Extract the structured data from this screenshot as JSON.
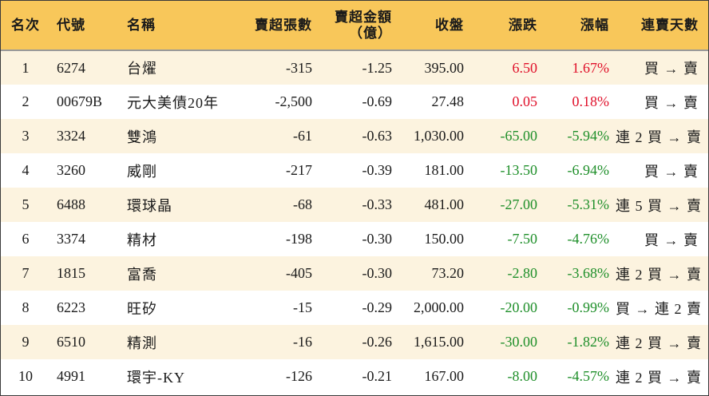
{
  "headers": {
    "rank": "名次",
    "code": "代號",
    "name": "名稱",
    "lots": "賣超張數",
    "amount_line1": "賣超金額",
    "amount_line2": "（億）",
    "close": "收盤",
    "change": "漲跌",
    "pct": "漲幅",
    "days": "連賣天數"
  },
  "colors": {
    "header_bg": "#f8c75a",
    "odd_row_bg": "#fcf3df",
    "up": "#e0102a",
    "down": "#1f8f2a"
  },
  "rows": [
    {
      "rank": "1",
      "code": "6274",
      "name": "台燿",
      "lots": "-315",
      "amount": "-1.25",
      "close": "395.00",
      "change": "6.50",
      "pct": "1.67%",
      "days": "買 → 賣",
      "trend": "up"
    },
    {
      "rank": "2",
      "code": "00679B",
      "name": "元大美債20年",
      "lots": "-2,500",
      "amount": "-0.69",
      "close": "27.48",
      "change": "0.05",
      "pct": "0.18%",
      "days": "買 → 賣",
      "trend": "up"
    },
    {
      "rank": "3",
      "code": "3324",
      "name": "雙鴻",
      "lots": "-61",
      "amount": "-0.63",
      "close": "1,030.00",
      "change": "-65.00",
      "pct": "-5.94%",
      "days": "連 2 買 → 賣",
      "trend": "down"
    },
    {
      "rank": "4",
      "code": "3260",
      "name": "威剛",
      "lots": "-217",
      "amount": "-0.39",
      "close": "181.00",
      "change": "-13.50",
      "pct": "-6.94%",
      "days": "買 → 賣",
      "trend": "down"
    },
    {
      "rank": "5",
      "code": "6488",
      "name": "環球晶",
      "lots": "-68",
      "amount": "-0.33",
      "close": "481.00",
      "change": "-27.00",
      "pct": "-5.31%",
      "days": "連 5 買 → 賣",
      "trend": "down"
    },
    {
      "rank": "6",
      "code": "3374",
      "name": "精材",
      "lots": "-198",
      "amount": "-0.30",
      "close": "150.00",
      "change": "-7.50",
      "pct": "-4.76%",
      "days": "買 → 賣",
      "trend": "down"
    },
    {
      "rank": "7",
      "code": "1815",
      "name": "富喬",
      "lots": "-405",
      "amount": "-0.30",
      "close": "73.20",
      "change": "-2.80",
      "pct": "-3.68%",
      "days": "連 2 買 → 賣",
      "trend": "down"
    },
    {
      "rank": "8",
      "code": "6223",
      "name": "旺矽",
      "lots": "-15",
      "amount": "-0.29",
      "close": "2,000.00",
      "change": "-20.00",
      "pct": "-0.99%",
      "days": "買 → 連 2 賣",
      "trend": "down"
    },
    {
      "rank": "9",
      "code": "6510",
      "name": "精測",
      "lots": "-16",
      "amount": "-0.26",
      "close": "1,615.00",
      "change": "-30.00",
      "pct": "-1.82%",
      "days": "連 2 買 → 賣",
      "trend": "down"
    },
    {
      "rank": "10",
      "code": "4991",
      "name": "環宇-KY",
      "lots": "-126",
      "amount": "-0.21",
      "close": "167.00",
      "change": "-8.00",
      "pct": "-4.57%",
      "days": "連 2 買 → 賣",
      "trend": "down"
    }
  ]
}
